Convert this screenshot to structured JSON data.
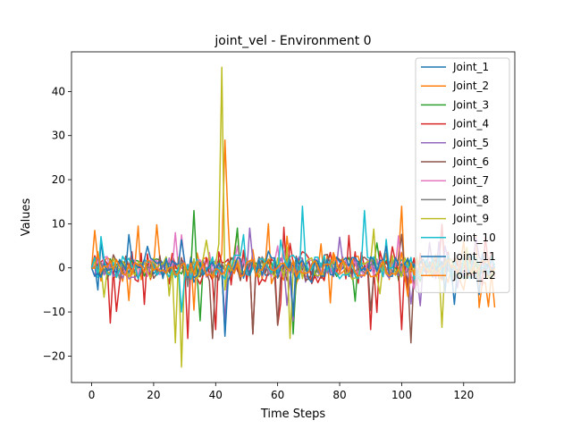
{
  "chart_data": {
    "type": "line",
    "title": "joint_vel - Environment 0",
    "xlabel": "Time Steps",
    "ylabel": "Values",
    "xlim": [
      -6.5,
      136.5
    ],
    "ylim": [
      -26,
      49
    ],
    "xticks": [
      0,
      20,
      40,
      60,
      80,
      100,
      120
    ],
    "yticks": [
      -20,
      -10,
      0,
      10,
      20,
      30,
      40
    ],
    "tick_labels_x": [
      "0",
      "20",
      "40",
      "60",
      "80",
      "100",
      "120"
    ],
    "tick_labels_y": [
      "−20",
      "−10",
      "0",
      "10",
      "20",
      "30",
      "40"
    ],
    "legend_position": "upper-right",
    "x_start": 0,
    "x_end": 130,
    "series": [
      {
        "name": "Joint_1",
        "color": "#1f77b4",
        "keypoints": [
          [
            0,
            0
          ],
          [
            2,
            -5
          ],
          [
            3,
            6
          ],
          [
            5,
            1
          ],
          [
            43,
            -15
          ],
          [
            44,
            1
          ],
          [
            130,
            1
          ]
        ],
        "amplitude": 2.0
      },
      {
        "name": "Joint_2",
        "color": "#ff7f0e",
        "keypoints": [
          [
            0,
            0
          ],
          [
            1,
            8.5
          ],
          [
            3,
            -3
          ],
          [
            15,
            9.5
          ],
          [
            43,
            29
          ],
          [
            44,
            10.5
          ],
          [
            57,
            10
          ],
          [
            65,
            -11
          ],
          [
            100,
            14
          ],
          [
            125,
            -9
          ],
          [
            130,
            -9
          ]
        ],
        "amplitude": 3.5
      },
      {
        "name": "Joint_3",
        "color": "#2ca02c",
        "keypoints": [
          [
            0,
            0
          ],
          [
            33,
            13
          ],
          [
            35,
            -12
          ],
          [
            43,
            -12
          ],
          [
            45,
            2
          ],
          [
            65,
            -15
          ],
          [
            130,
            0
          ]
        ],
        "amplitude": 2.5
      },
      {
        "name": "Joint_4",
        "color": "#d62728",
        "keypoints": [
          [
            0,
            0
          ],
          [
            31,
            -16
          ],
          [
            40,
            -14
          ],
          [
            52,
            -15
          ],
          [
            60,
            -13
          ],
          [
            90,
            -14
          ],
          [
            100,
            -14
          ],
          [
            130,
            -2
          ]
        ],
        "amplitude": 4.0
      },
      {
        "name": "Joint_5",
        "color": "#9467bd",
        "keypoints": [
          [
            0,
            0
          ],
          [
            43,
            -12
          ],
          [
            51,
            9
          ],
          [
            65,
            -12
          ],
          [
            130,
            0
          ]
        ],
        "amplitude": 2.5
      },
      {
        "name": "Joint_6",
        "color": "#8c564b",
        "keypoints": [
          [
            0,
            0
          ],
          [
            39,
            -16
          ],
          [
            52,
            -15
          ],
          [
            60,
            -13
          ],
          [
            103,
            -17
          ],
          [
            130,
            0
          ]
        ],
        "amplitude": 3.0
      },
      {
        "name": "Joint_7",
        "color": "#e377c2",
        "keypoints": [
          [
            0,
            0
          ],
          [
            27,
            8
          ],
          [
            29,
            7.5
          ],
          [
            60,
            5
          ],
          [
            130,
            0
          ]
        ],
        "amplitude": 2.0
      },
      {
        "name": "Joint_8",
        "color": "#7f7f7f",
        "keypoints": [
          [
            0,
            0
          ],
          [
            130,
            0
          ]
        ],
        "amplitude": 1.5
      },
      {
        "name": "Joint_9",
        "color": "#bcbd22",
        "keypoints": [
          [
            0,
            0
          ],
          [
            27,
            -17
          ],
          [
            29,
            -22.5
          ],
          [
            42,
            45.5
          ],
          [
            43,
            -5
          ],
          [
            64,
            -16
          ],
          [
            113,
            -13.5
          ],
          [
            130,
            0
          ]
        ],
        "amplitude": 2.5
      },
      {
        "name": "Joint_10",
        "color": "#17becf",
        "keypoints": [
          [
            0,
            0
          ],
          [
            29,
            -10
          ],
          [
            68,
            14
          ],
          [
            88,
            13
          ],
          [
            130,
            0
          ]
        ],
        "amplitude": 3.0
      },
      {
        "name": "Joint_11",
        "color": "#1f77b4",
        "keypoints": [
          [
            0,
            0
          ],
          [
            43,
            -15.5
          ],
          [
            65,
            -11
          ],
          [
            130,
            0
          ]
        ],
        "amplitude": 2.5
      },
      {
        "name": "Joint_12",
        "color": "#ff7f0e",
        "keypoints": [
          [
            0,
            0
          ],
          [
            120,
            6
          ],
          [
            130,
            0
          ]
        ],
        "amplitude": 2.0
      }
    ]
  }
}
